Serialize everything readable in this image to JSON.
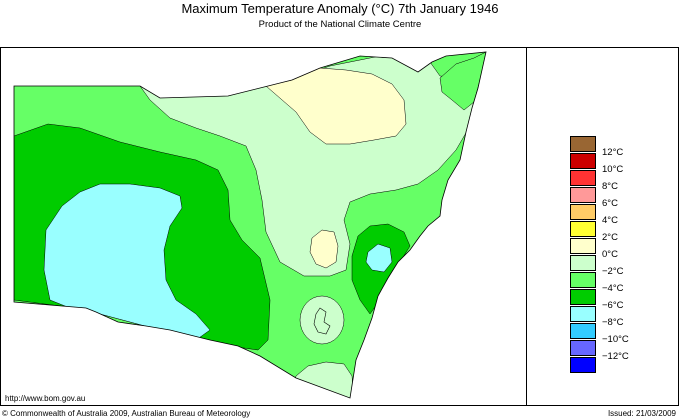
{
  "header": {
    "title": "Maximum Temperature Anomaly (°C)  7th January 1946",
    "subtitle": "Product of the National Climate Centre"
  },
  "legend": {
    "items": [
      {
        "label": "",
        "color": "#996633"
      },
      {
        "label": "12°C",
        "color": "#cc0000"
      },
      {
        "label": "10°C",
        "color": "#ff3333"
      },
      {
        "label": "8°C",
        "color": "#ff9999"
      },
      {
        "label": "6°C",
        "color": "#ffcc66"
      },
      {
        "label": "4°C",
        "color": "#ffff33"
      },
      {
        "label": "2°C",
        "color": "#ffffcc"
      },
      {
        "label": "0°C",
        "color": "#ccffcc"
      },
      {
        "label": "−2°C",
        "color": "#66ff66"
      },
      {
        "label": "−4°C",
        "color": "#00cc00"
      },
      {
        "label": "−6°C",
        "color": "#99ffff"
      },
      {
        "label": "−8°C",
        "color": "#33ccff"
      },
      {
        "label": "−10°C",
        "color": "#6666ff"
      },
      {
        "label": "−12°C",
        "color": "#0000ff"
      }
    ]
  },
  "map": {
    "region": "New South Wales",
    "anomaly_zones": [
      {
        "range": "2°C",
        "color": "#ffffcc"
      },
      {
        "range": "0°C",
        "color": "#ccffcc"
      },
      {
        "range": "−2°C",
        "color": "#66ff66"
      },
      {
        "range": "−4°C",
        "color": "#00cc00"
      },
      {
        "range": "−6°C",
        "color": "#99ffff"
      }
    ]
  },
  "footer": {
    "url": "http://www.bom.gov.au",
    "copyright": "© Commonwealth of Australia 2009, Australian Bureau of Meteorology",
    "issued": "Issued: 21/03/2009"
  }
}
